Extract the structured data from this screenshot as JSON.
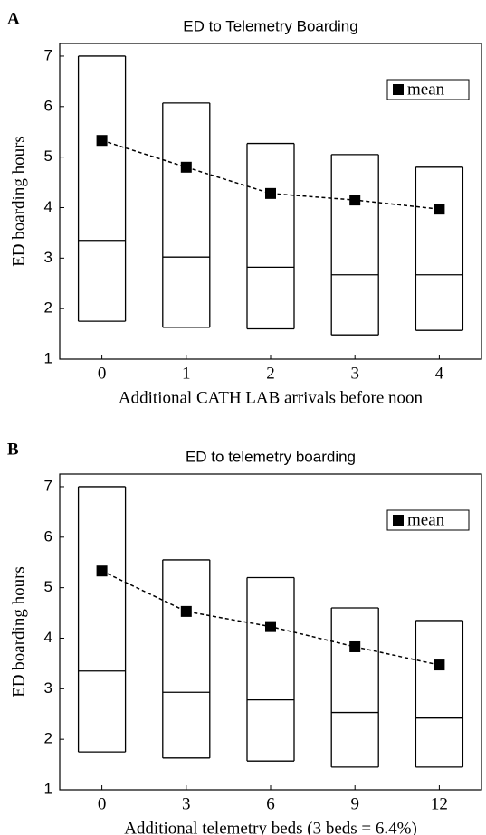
{
  "chart_data": [
    {
      "type": "box",
      "panel": "A",
      "title": "ED to Telemetry Boarding",
      "xlabel": "Additional CATH LAB arrivals before noon",
      "ylabel": "ED boarding hours",
      "categories": [
        "0",
        "1",
        "2",
        "3",
        "4"
      ],
      "low": [
        1.75,
        1.63,
        1.6,
        1.48,
        1.57
      ],
      "median": [
        3.35,
        3.02,
        2.82,
        2.67,
        2.67
      ],
      "high": [
        7.0,
        6.07,
        5.27,
        5.05,
        4.8
      ],
      "series": [
        {
          "name": "mean",
          "color": "#000000",
          "values": [
            5.33,
            4.8,
            4.28,
            4.15,
            3.97
          ]
        }
      ],
      "ylim": [
        1,
        7.25
      ],
      "yticks": [
        1,
        2,
        3,
        4,
        5,
        6,
        7
      ],
      "legend": "upper right"
    },
    {
      "type": "box",
      "panel": "B",
      "title": "ED to telemetry boarding",
      "xlabel": "Additional telemetry beds (3 beds = 6.4%)",
      "ylabel": "ED boarding hours",
      "categories": [
        "0",
        "3",
        "6",
        "9",
        "12"
      ],
      "low": [
        1.75,
        1.63,
        1.57,
        1.45,
        1.45
      ],
      "median": [
        3.35,
        2.93,
        2.78,
        2.53,
        2.42
      ],
      "high": [
        7.0,
        5.55,
        5.2,
        4.6,
        4.35
      ],
      "series": [
        {
          "name": "mean",
          "color": "#000000",
          "values": [
            5.33,
            4.53,
            4.23,
            3.83,
            3.47
          ]
        }
      ],
      "ylim": [
        1,
        7.25
      ],
      "yticks": [
        1,
        2,
        3,
        4,
        5,
        6,
        7
      ],
      "legend": "upper right"
    }
  ]
}
